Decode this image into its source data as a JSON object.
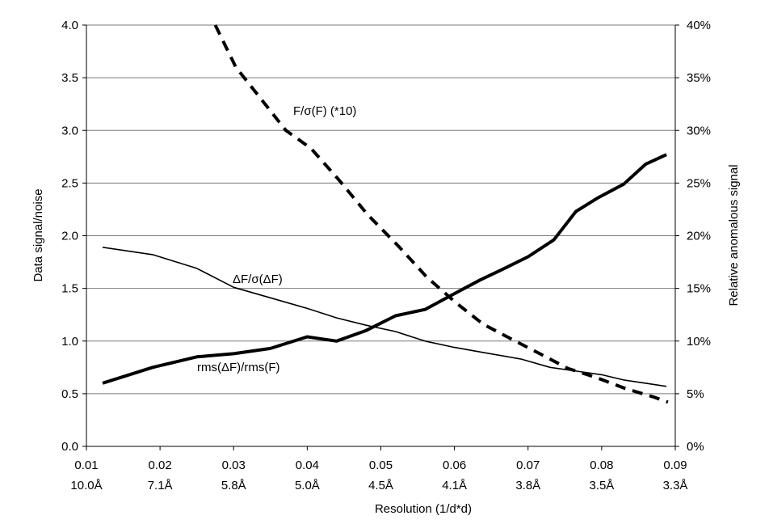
{
  "chart_data": {
    "type": "line",
    "xlabel": "Resolution (1/d*d)",
    "ylabel_left": "Data signal/noise",
    "ylabel_right": "Relative anomalous signal",
    "x_range": [
      0.01,
      0.09
    ],
    "y_left_range": [
      0.0,
      4.0
    ],
    "y_right_range": [
      0,
      40
    ],
    "x_ticks": [
      0.01,
      0.02,
      0.03,
      0.04,
      0.05,
      0.06,
      0.07,
      0.08,
      0.09
    ],
    "x_tick_labels": [
      "0.01",
      "0.02",
      "0.03",
      "0.04",
      "0.05",
      "0.06",
      "0.07",
      "0.08",
      "0.09"
    ],
    "x_tick_sublabels": [
      "10.0Å",
      "7.1Å",
      "5.8Å",
      "5.0Å",
      "4.5Å",
      "4.1Å",
      "3.8Å",
      "3.5Å",
      "3.3Å"
    ],
    "y_left_ticks": [
      0.0,
      0.5,
      1.0,
      1.5,
      2.0,
      2.5,
      3.0,
      3.5,
      4.0
    ],
    "y_left_tick_labels": [
      "0.0",
      "0.5",
      "1.0",
      "1.5",
      "2.0",
      "2.5",
      "3.0",
      "3.5",
      "4.0"
    ],
    "y_right_ticks": [
      0,
      5,
      10,
      15,
      20,
      25,
      30,
      35,
      40
    ],
    "y_right_tick_labels": [
      "0%",
      "5%",
      "10%",
      "15%",
      "20%",
      "25%",
      "30%",
      "35%",
      "40%"
    ],
    "grid": "horizontal",
    "series": [
      {
        "label": "F/σ(F) (*10)",
        "axis": "left",
        "style": "dashed-thick",
        "x": [
          0.0275,
          0.0303,
          0.0337,
          0.0371,
          0.0405,
          0.0443,
          0.0482,
          0.0524,
          0.0562,
          0.0601,
          0.0639,
          0.0677,
          0.0716,
          0.0754,
          0.0794,
          0.0832,
          0.087,
          0.089
        ],
        "values": [
          4.0,
          3.6,
          3.3,
          3.0,
          2.83,
          2.53,
          2.2,
          1.9,
          1.61,
          1.37,
          1.16,
          1.02,
          0.88,
          0.74,
          0.65,
          0.55,
          0.47,
          0.42
        ]
      },
      {
        "label": "ΔF/σ(ΔF)",
        "axis": "left",
        "style": "solid-thin",
        "x": [
          0.0122,
          0.019,
          0.025,
          0.03,
          0.035,
          0.04,
          0.044,
          0.048,
          0.052,
          0.056,
          0.06,
          0.064,
          0.069,
          0.073,
          0.077,
          0.08,
          0.083,
          0.086,
          0.0888
        ],
        "values": [
          1.89,
          1.82,
          1.69,
          1.51,
          1.41,
          1.31,
          1.22,
          1.15,
          1.09,
          1.0,
          0.94,
          0.89,
          0.83,
          0.75,
          0.71,
          0.68,
          0.63,
          0.6,
          0.57
        ]
      },
      {
        "label": "rms(ΔF)/rms(F)",
        "axis": "right",
        "style": "solid-thick",
        "x": [
          0.0122,
          0.019,
          0.025,
          0.03,
          0.035,
          0.04,
          0.044,
          0.048,
          0.052,
          0.056,
          0.06,
          0.0635,
          0.0665,
          0.07,
          0.0735,
          0.0765,
          0.0795,
          0.083,
          0.086,
          0.0888
        ],
        "values": [
          6.0,
          7.5,
          8.5,
          8.8,
          9.3,
          10.4,
          10.0,
          11.0,
          12.4,
          13.0,
          14.5,
          15.8,
          16.8,
          18.0,
          19.6,
          22.3,
          23.6,
          24.9,
          26.8,
          27.7
        ]
      }
    ]
  }
}
